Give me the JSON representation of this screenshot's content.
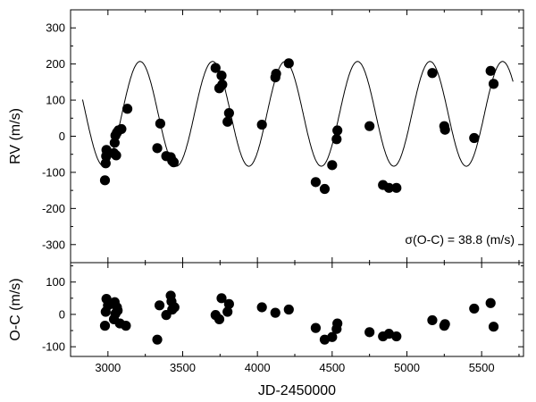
{
  "chart_data": {
    "type": "scatter",
    "xlabel": "JD-2450000",
    "xlim": [
      2750,
      5780
    ],
    "x_ticks": [
      3000,
      3500,
      4000,
      4500,
      5000,
      5500
    ],
    "colors": {
      "points": "#000000",
      "curve": "#000000",
      "axes": "#000000",
      "background": "#ffffff"
    },
    "panels": [
      {
        "id": "rv",
        "ylabel": "RV (m/s)",
        "ylim": [
          -350,
          350
        ],
        "y_ticks": [
          -300,
          -200,
          -100,
          0,
          100,
          200,
          300
        ],
        "annotation": "σ(O-C) = 38.8 (m/s)",
        "model": {
          "period_days": 485,
          "center": 62,
          "amplitude": 145,
          "peak_time": 3215,
          "x_range": [
            2830,
            5710
          ]
        },
        "points": [
          {
            "x": 2980,
            "y": -122
          },
          {
            "x": 2985,
            "y": -75
          },
          {
            "x": 2988,
            "y": -55
          },
          {
            "x": 2990,
            "y": -38
          },
          {
            "x": 3040,
            "y": -47
          },
          {
            "x": 3045,
            "y": -18
          },
          {
            "x": 3050,
            "y": 2
          },
          {
            "x": 3055,
            "y": -53
          },
          {
            "x": 3060,
            "y": 10
          },
          {
            "x": 3070,
            "y": 16
          },
          {
            "x": 3090,
            "y": 20
          },
          {
            "x": 3130,
            "y": 76
          },
          {
            "x": 3330,
            "y": -33
          },
          {
            "x": 3350,
            "y": 35
          },
          {
            "x": 3390,
            "y": -55
          },
          {
            "x": 3420,
            "y": -58
          },
          {
            "x": 3430,
            "y": -68
          },
          {
            "x": 3440,
            "y": -72
          },
          {
            "x": 3720,
            "y": 189
          },
          {
            "x": 3745,
            "y": 133
          },
          {
            "x": 3760,
            "y": 168
          },
          {
            "x": 3765,
            "y": 143
          },
          {
            "x": 3800,
            "y": 40
          },
          {
            "x": 3810,
            "y": 64
          },
          {
            "x": 4030,
            "y": 32
          },
          {
            "x": 4120,
            "y": 163
          },
          {
            "x": 4125,
            "y": 173
          },
          {
            "x": 4210,
            "y": 202
          },
          {
            "x": 4390,
            "y": -127
          },
          {
            "x": 4450,
            "y": -146
          },
          {
            "x": 4500,
            "y": -80
          },
          {
            "x": 4530,
            "y": -8
          },
          {
            "x": 4535,
            "y": 16
          },
          {
            "x": 4750,
            "y": 28
          },
          {
            "x": 4840,
            "y": -135
          },
          {
            "x": 4880,
            "y": -143
          },
          {
            "x": 4930,
            "y": -143
          },
          {
            "x": 5170,
            "y": 175
          },
          {
            "x": 5250,
            "y": 28
          },
          {
            "x": 5255,
            "y": 18
          },
          {
            "x": 5450,
            "y": -5
          },
          {
            "x": 5560,
            "y": 181
          },
          {
            "x": 5580,
            "y": 145
          }
        ]
      },
      {
        "id": "oc",
        "ylabel": "O-C (m/s)",
        "ylim": [
          -130,
          160
        ],
        "y_ticks": [
          -100,
          0,
          100
        ],
        "points": [
          {
            "x": 2980,
            "y": -35
          },
          {
            "x": 2985,
            "y": 8
          },
          {
            "x": 2990,
            "y": 48
          },
          {
            "x": 3000,
            "y": 28
          },
          {
            "x": 3040,
            "y": -15
          },
          {
            "x": 3045,
            "y": 38
          },
          {
            "x": 3050,
            "y": 2
          },
          {
            "x": 3060,
            "y": 22
          },
          {
            "x": 3065,
            "y": 12
          },
          {
            "x": 3080,
            "y": -28
          },
          {
            "x": 3120,
            "y": -35
          },
          {
            "x": 3330,
            "y": -78
          },
          {
            "x": 3345,
            "y": 28
          },
          {
            "x": 3390,
            "y": -2
          },
          {
            "x": 3420,
            "y": 58
          },
          {
            "x": 3425,
            "y": 40
          },
          {
            "x": 3430,
            "y": 15
          },
          {
            "x": 3445,
            "y": 22
          },
          {
            "x": 3720,
            "y": -2
          },
          {
            "x": 3745,
            "y": -15
          },
          {
            "x": 3760,
            "y": 50
          },
          {
            "x": 3800,
            "y": 8
          },
          {
            "x": 3810,
            "y": 32
          },
          {
            "x": 4030,
            "y": 22
          },
          {
            "x": 4120,
            "y": 5
          },
          {
            "x": 4210,
            "y": 15
          },
          {
            "x": 4390,
            "y": -42
          },
          {
            "x": 4450,
            "y": -78
          },
          {
            "x": 4500,
            "y": -70
          },
          {
            "x": 4530,
            "y": -45
          },
          {
            "x": 4535,
            "y": -28
          },
          {
            "x": 4750,
            "y": -55
          },
          {
            "x": 4840,
            "y": -68
          },
          {
            "x": 4880,
            "y": -60
          },
          {
            "x": 4930,
            "y": -68
          },
          {
            "x": 5170,
            "y": -18
          },
          {
            "x": 5250,
            "y": -35
          },
          {
            "x": 5255,
            "y": -30
          },
          {
            "x": 5450,
            "y": 18
          },
          {
            "x": 5560,
            "y": 35
          },
          {
            "x": 5580,
            "y": -38
          }
        ]
      }
    ]
  }
}
